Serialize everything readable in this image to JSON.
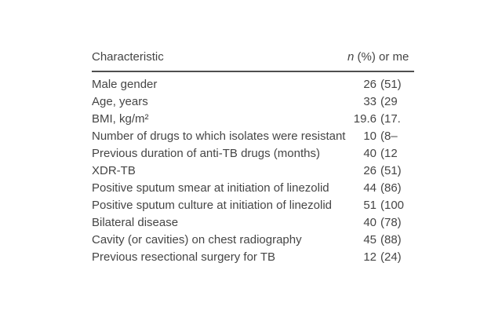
{
  "table": {
    "header": {
      "characteristic": "Characteristic",
      "value_italic_n": "n",
      "value_rest": " (%) or me"
    },
    "rows": [
      {
        "label": "Male gender",
        "n": "26",
        "detail": "(51)"
      },
      {
        "label": "Age, years",
        "n": "33",
        "detail": "(29"
      },
      {
        "label": "BMI, kg/m²",
        "n": "19.6",
        "detail": "(17."
      },
      {
        "label": "Number of drugs to which isolates were resistant",
        "n": "10",
        "detail": "(8–"
      },
      {
        "label": "Previous duration of anti-TB drugs (months)",
        "n": "40",
        "detail": "(12"
      },
      {
        "label": "XDR-TB",
        "n": "26",
        "detail": "(51)"
      },
      {
        "label": "Positive sputum smear at initiation of linezolid",
        "n": "44",
        "detail": "(86)"
      },
      {
        "label": "Positive sputum culture at initiation of linezolid",
        "n": "51",
        "detail": "(100"
      },
      {
        "label": "Bilateral disease",
        "n": "40",
        "detail": "(78)"
      },
      {
        "label": "Cavity (or cavities) on chest radiography",
        "n": "45",
        "detail": "(88)"
      },
      {
        "label": "Previous resectional surgery for TB",
        "n": "12",
        "detail": "(24)"
      }
    ],
    "colors": {
      "text": "#454545",
      "rule": "#4f4f4f",
      "background": "#ffffff"
    }
  }
}
